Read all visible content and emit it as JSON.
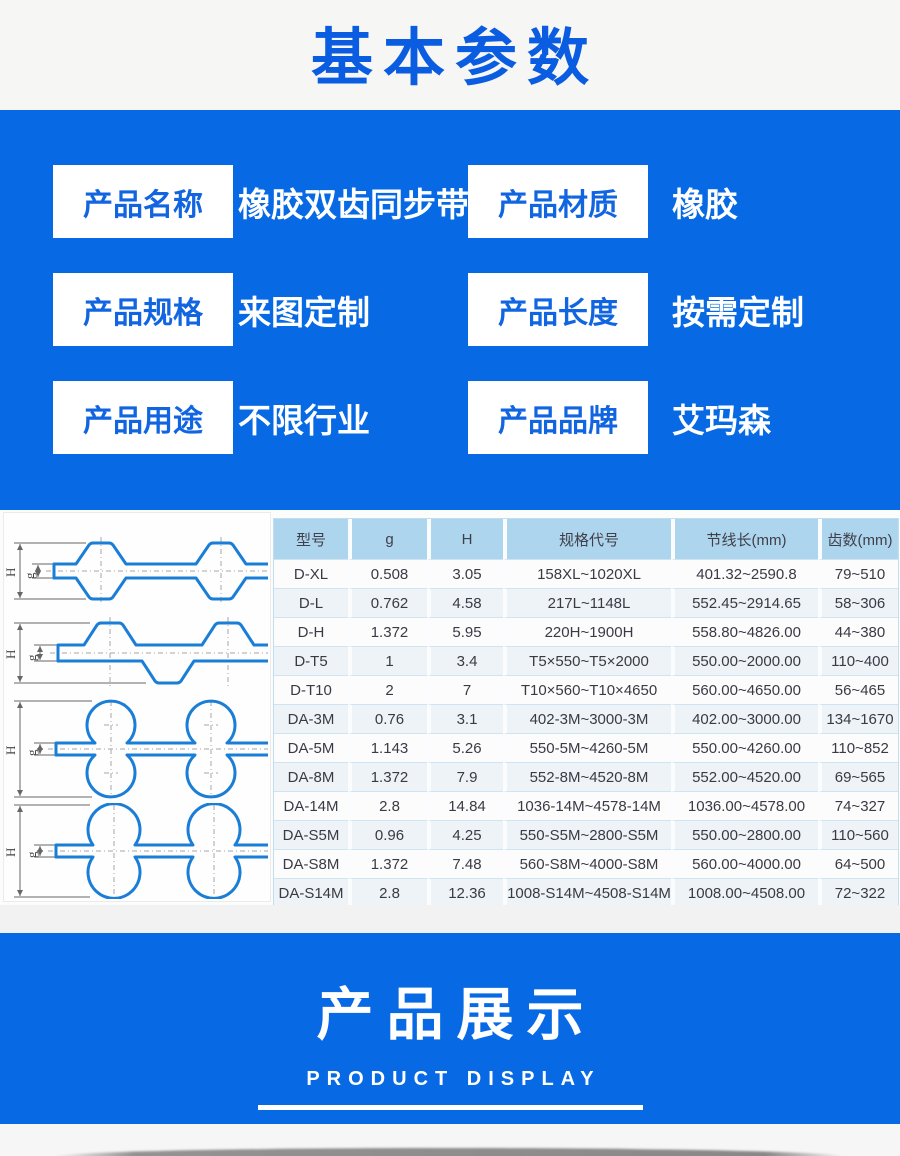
{
  "title": "基本参数",
  "params": {
    "items": [
      {
        "label": "产品名称",
        "value": "橡胶双齿同步带"
      },
      {
        "label": "产品材质",
        "value": "橡胶"
      },
      {
        "label": "产品规格",
        "value": "来图定制"
      },
      {
        "label": "产品长度",
        "value": "按需定制"
      },
      {
        "label": "产品用途",
        "value": "不限行业"
      },
      {
        "label": "产品品牌",
        "value": "艾玛森"
      }
    ]
  },
  "table": {
    "headers": [
      "型号",
      "g",
      "H",
      "规格代号",
      "节线长(mm)",
      "齿数(mm)"
    ],
    "rows": [
      [
        "D-XL",
        "0.508",
        "3.05",
        "158XL~1020XL",
        "401.32~2590.8",
        "79~510"
      ],
      [
        "D-L",
        "0.762",
        "4.58",
        "217L~1148L",
        "552.45~2914.65",
        "58~306"
      ],
      [
        "D-H",
        "1.372",
        "5.95",
        "220H~1900H",
        "558.80~4826.00",
        "44~380"
      ],
      [
        "D-T5",
        "1",
        "3.4",
        "T5×550~T5×2000",
        "550.00~2000.00",
        "110~400"
      ],
      [
        "D-T10",
        "2",
        "7",
        "T10×560~T10×4650",
        "560.00~4650.00",
        "56~465"
      ],
      [
        "DA-3M",
        "0.76",
        "3.1",
        "402-3M~3000-3M",
        "402.00~3000.00",
        "134~1670"
      ],
      [
        "DA-5M",
        "1.143",
        "5.26",
        "550-5M~4260-5M",
        "550.00~4260.00",
        "110~852"
      ],
      [
        "DA-8M",
        "1.372",
        "7.9",
        "552-8M~4520-8M",
        "552.00~4520.00",
        "69~565"
      ],
      [
        "DA-14M",
        "2.8",
        "14.84",
        "1036-14M~4578-14M",
        "1036.00~4578.00",
        "74~327"
      ],
      [
        "DA-S5M",
        "0.96",
        "4.25",
        "550-S5M~2800-S5M",
        "550.00~2800.00",
        "110~560"
      ],
      [
        "DA-S8M",
        "1.372",
        "7.48",
        "560-S8M~4000-S8M",
        "560.00~4000.00",
        "64~500"
      ],
      [
        "DA-S14M",
        "2.8",
        "12.36",
        "1008-S14M~4508-S14M",
        "1008.00~4508.00",
        "72~322"
      ]
    ]
  },
  "diagrams": {
    "h_label": "H",
    "g_label": "g"
  },
  "banner": {
    "title": "产品展示",
    "subtitle": "PRODUCT DISPLAY"
  },
  "colors": {
    "accent_blue": "#0769e4",
    "title_blue": "#0a5ce0",
    "table_header_bg": "#aed5ee",
    "diagram_stroke": "#1b7ed6"
  }
}
